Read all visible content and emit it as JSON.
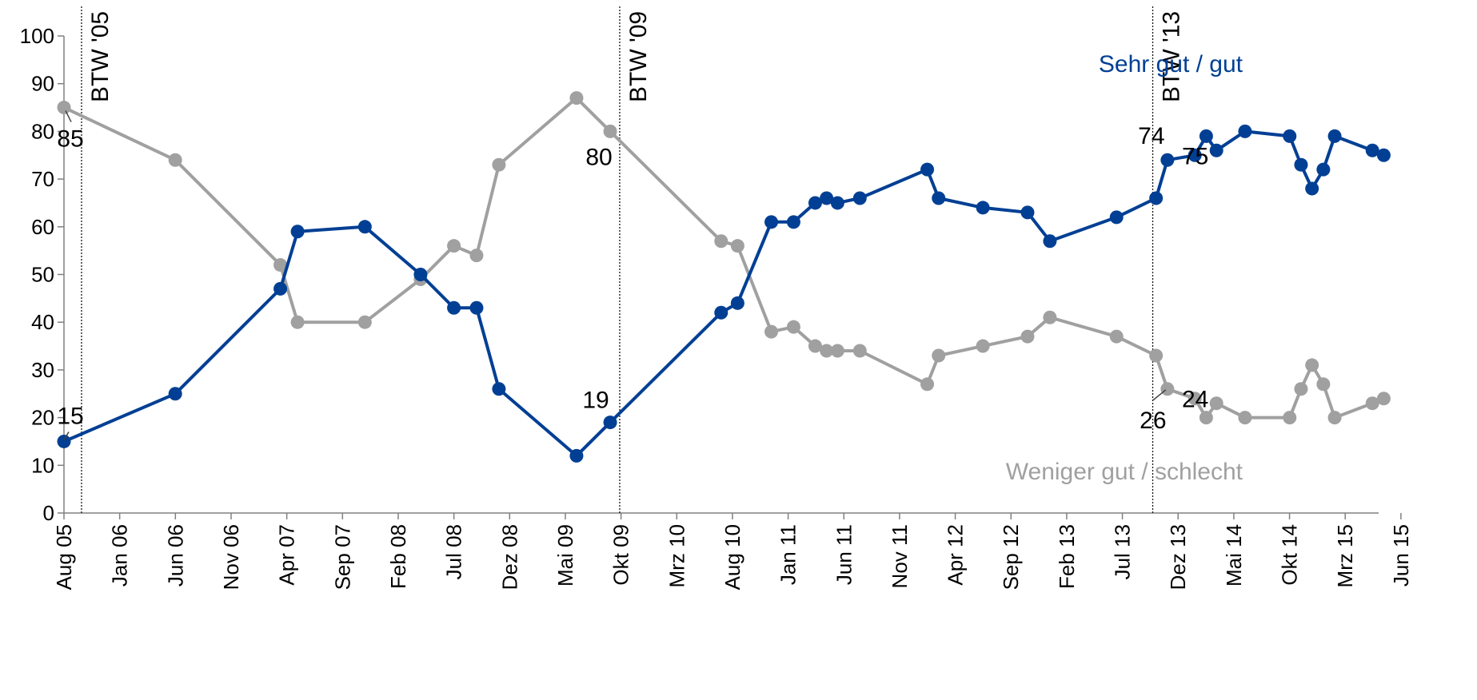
{
  "chart_data": {
    "type": "line",
    "ylim": [
      0,
      100
    ],
    "yticks": [
      0,
      10,
      20,
      30,
      40,
      50,
      60,
      70,
      80,
      90,
      100
    ],
    "x_ticks": [
      "Aug 05",
      "Jan 06",
      "Jun 06",
      "Nov 06",
      "Apr 07",
      "Sep 07",
      "Feb 08",
      "Jul 08",
      "Dez 08",
      "Mai 09",
      "Okt 09",
      "Mrz 10",
      "Aug 10",
      "Jan 11",
      "Jun 11",
      "Nov 11",
      "Apr 12",
      "Sep 12",
      "Feb 13",
      "Jul 13",
      "Dez 13",
      "Mai 14",
      "Okt 14",
      "Mrz 15",
      "Jun 15"
    ],
    "grid": false,
    "colors": {
      "series_good": "#003f94",
      "series_bad": "#a0a0a0",
      "axis": "#808080",
      "marker_line": "#404040"
    },
    "vlines": [
      {
        "label": "BTW '05",
        "x": "2005-09-18"
      },
      {
        "label": "BTW '09",
        "x": "2009-09-27"
      },
      {
        "label": "BTW '13",
        "x": "2013-09-22"
      }
    ],
    "series": [
      {
        "name": "Sehr gut / gut",
        "points": [
          [
            "2005-08-01",
            15
          ],
          [
            "2006-06-01",
            25
          ],
          [
            "2007-03-15",
            47
          ],
          [
            "2007-05-01",
            59
          ],
          [
            "2007-11-01",
            60
          ],
          [
            "2008-04-01",
            50
          ],
          [
            "2008-07-01",
            43
          ],
          [
            "2008-09-01",
            43
          ],
          [
            "2008-11-01",
            26
          ],
          [
            "2009-06-01",
            12
          ],
          [
            "2009-09-01",
            19
          ],
          [
            "2010-07-01",
            42
          ],
          [
            "2010-08-15",
            44
          ],
          [
            "2010-11-15",
            61
          ],
          [
            "2011-01-15",
            61
          ],
          [
            "2011-03-15",
            65
          ],
          [
            "2011-04-15",
            66
          ],
          [
            "2011-05-15",
            65
          ],
          [
            "2011-07-15",
            66
          ],
          [
            "2012-01-15",
            72
          ],
          [
            "2012-02-15",
            66
          ],
          [
            "2012-06-15",
            64
          ],
          [
            "2012-10-15",
            63
          ],
          [
            "2012-12-15",
            57
          ],
          [
            "2013-06-15",
            62
          ],
          [
            "2013-10-01",
            66
          ],
          [
            "2013-11-01",
            74
          ],
          [
            "2014-01-15",
            75
          ],
          [
            "2014-02-15",
            79
          ],
          [
            "2014-03-15",
            76
          ],
          [
            "2014-06-01",
            80
          ],
          [
            "2014-10-01",
            79
          ],
          [
            "2014-11-01",
            73
          ],
          [
            "2014-12-01",
            68
          ],
          [
            "2015-01-01",
            72
          ],
          [
            "2015-02-01",
            79
          ],
          [
            "2015-05-15",
            76
          ],
          [
            "2015-06-15",
            75
          ]
        ],
        "end_label": "75",
        "point_labels": [
          {
            "index": 0,
            "text": "15"
          },
          {
            "index": 10,
            "text": "19"
          },
          {
            "index": 26,
            "text": "74"
          }
        ]
      },
      {
        "name": "Weniger gut / schlecht",
        "points": [
          [
            "2005-08-01",
            85
          ],
          [
            "2006-06-01",
            74
          ],
          [
            "2007-03-15",
            52
          ],
          [
            "2007-05-01",
            40
          ],
          [
            "2007-11-01",
            40
          ],
          [
            "2008-04-01",
            49
          ],
          [
            "2008-07-01",
            56
          ],
          [
            "2008-09-01",
            54
          ],
          [
            "2008-11-01",
            73
          ],
          [
            "2009-06-01",
            87
          ],
          [
            "2009-09-01",
            80
          ],
          [
            "2010-07-01",
            57
          ],
          [
            "2010-08-15",
            56
          ],
          [
            "2010-11-15",
            38
          ],
          [
            "2011-01-15",
            39
          ],
          [
            "2011-03-15",
            35
          ],
          [
            "2011-04-15",
            34
          ],
          [
            "2011-05-15",
            34
          ],
          [
            "2011-07-15",
            34
          ],
          [
            "2012-01-15",
            27
          ],
          [
            "2012-02-15",
            33
          ],
          [
            "2012-06-15",
            35
          ],
          [
            "2012-10-15",
            37
          ],
          [
            "2012-12-15",
            41
          ],
          [
            "2013-06-15",
            37
          ],
          [
            "2013-10-01",
            33
          ],
          [
            "2013-11-01",
            26
          ],
          [
            "2014-01-15",
            24
          ],
          [
            "2014-02-15",
            20
          ],
          [
            "2014-03-15",
            23
          ],
          [
            "2014-06-01",
            20
          ],
          [
            "2014-10-01",
            20
          ],
          [
            "2014-11-01",
            26
          ],
          [
            "2014-12-01",
            31
          ],
          [
            "2015-01-01",
            27
          ],
          [
            "2015-02-01",
            20
          ],
          [
            "2015-05-15",
            23
          ],
          [
            "2015-06-15",
            24
          ]
        ],
        "end_label": "24",
        "point_labels": [
          {
            "index": 0,
            "text": "85"
          },
          {
            "index": 10,
            "text": "80"
          },
          {
            "index": 26,
            "text": "26"
          }
        ]
      }
    ]
  }
}
